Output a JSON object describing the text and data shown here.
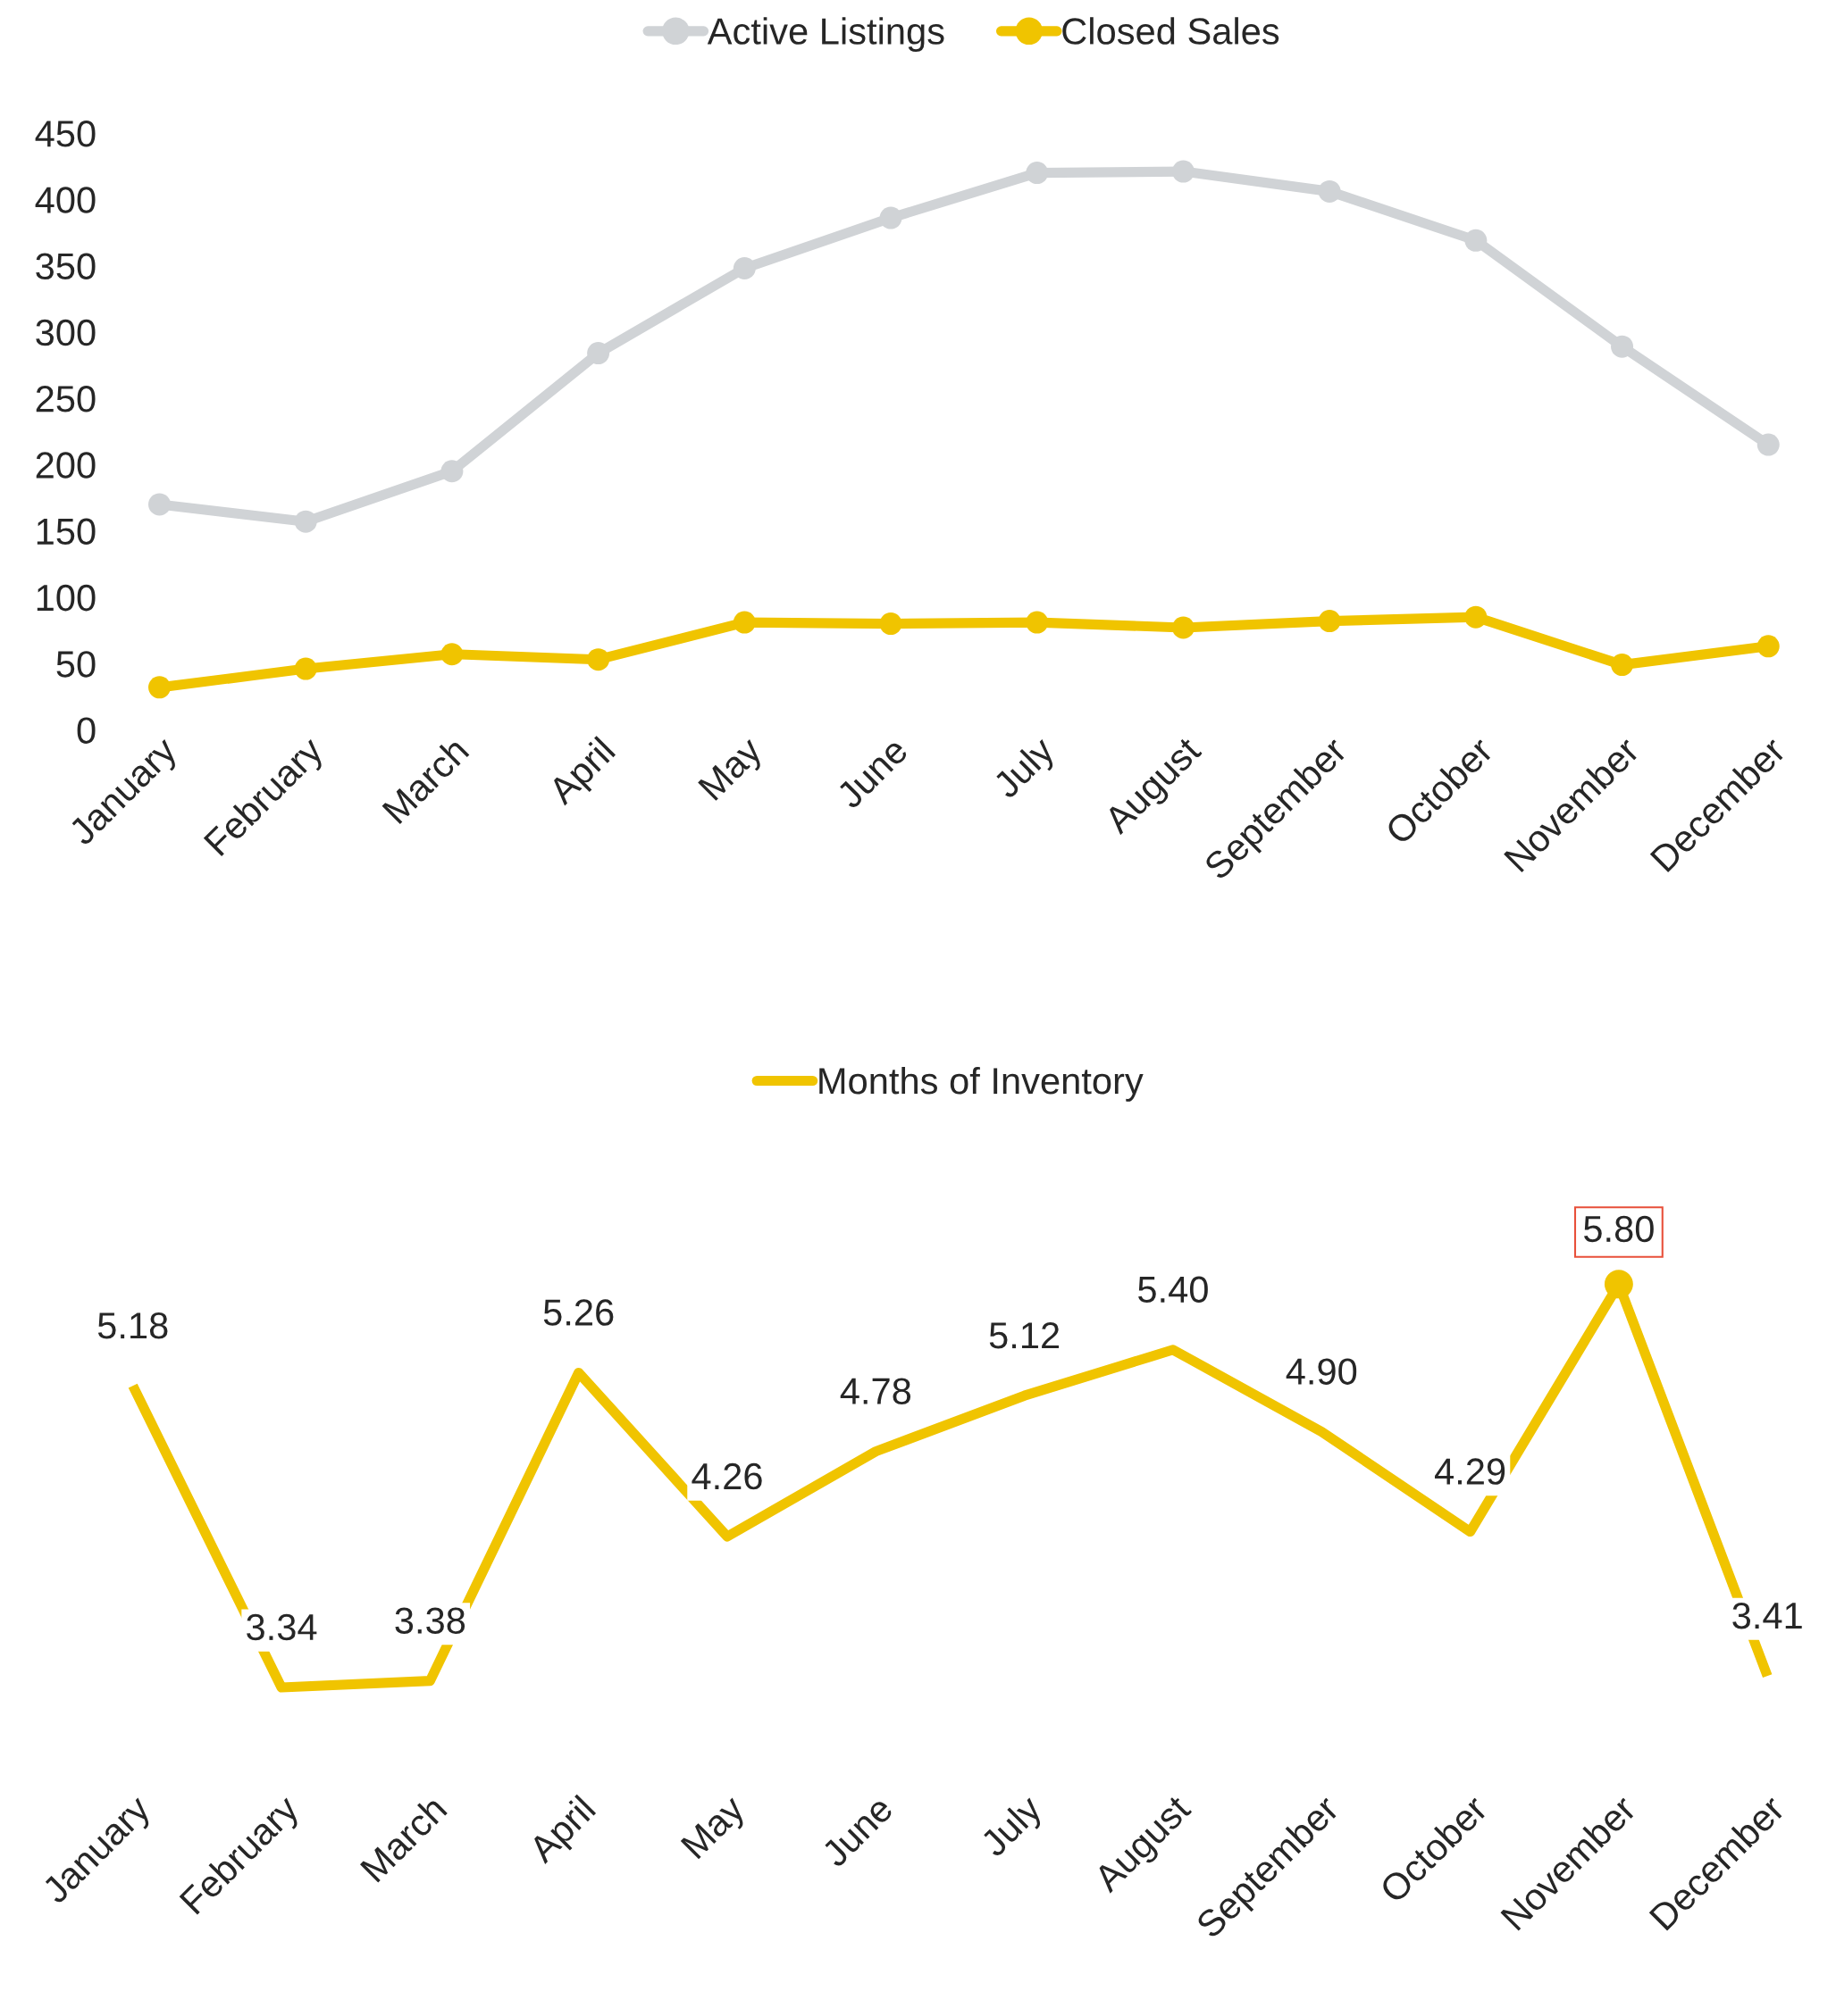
{
  "chart_data": [
    {
      "type": "line",
      "categories": [
        "January",
        "February",
        "March",
        "April",
        "May",
        "June",
        "July",
        "August",
        "September",
        "October",
        "November",
        "December"
      ],
      "series": [
        {
          "name": "Active Listings",
          "color": "#d0d3d6",
          "values": [
            170,
            157,
            195,
            284,
            348,
            386,
            420,
            421,
            406,
            369,
            289,
            215
          ]
        },
        {
          "name": "Closed Sales",
          "color": "#f0c400",
          "values": [
            32,
            46,
            57,
            53,
            81,
            80,
            81,
            77,
            82,
            85,
            49,
            63
          ]
        }
      ],
      "ylim": [
        0,
        450
      ],
      "yticks": [
        0,
        50,
        100,
        150,
        200,
        250,
        300,
        350,
        400,
        450
      ],
      "grid": false,
      "legend": "top",
      "marker": "circle",
      "line_style": "solid"
    },
    {
      "type": "line",
      "categories": [
        "January",
        "February",
        "March",
        "April",
        "May",
        "June",
        "July",
        "August",
        "September",
        "October",
        "November",
        "December"
      ],
      "series": [
        {
          "name": "Months of Inventory",
          "color": "#f0c400",
          "values": [
            5.18,
            3.34,
            3.38,
            5.26,
            4.26,
            4.78,
            5.12,
            5.4,
            4.9,
            4.29,
            5.8,
            3.41
          ],
          "value_labels": [
            "5.18",
            "3.34",
            "3.38",
            "5.26",
            "4.26",
            "4.78",
            "5.12",
            "5.40",
            "4.90",
            "4.29",
            null,
            "3.41"
          ]
        }
      ],
      "annotations": [
        {
          "text": "5.80",
          "x": "November",
          "y": 5.8
        }
      ],
      "tick_labels": "x",
      "grid": false,
      "legend": "top",
      "marker": "none",
      "line_style": "solid"
    }
  ]
}
